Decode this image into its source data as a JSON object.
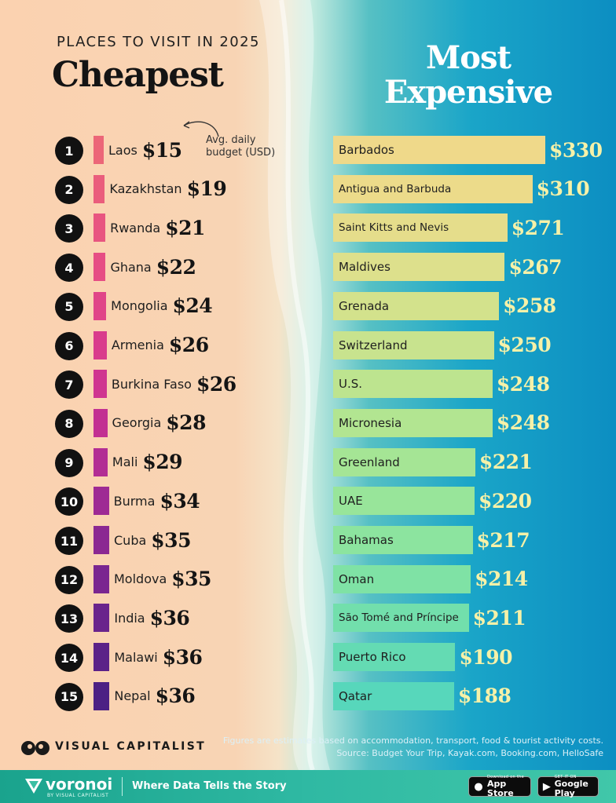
{
  "header": {
    "subtitle": "PLACES TO VISIT IN 2025",
    "cheapest_title": "Cheapest",
    "expensive_title_line1": "Most",
    "expensive_title_line2": "Expensive",
    "note_line1": "Avg. daily",
    "note_line2": "budget (USD)"
  },
  "chart_data": [
    {
      "type": "bar",
      "title": "Cheapest",
      "ylabel": "Avg. daily budget (USD)",
      "categories": [
        "Laos",
        "Kazakhstan",
        "Rwanda",
        "Ghana",
        "Mongolia",
        "Armenia",
        "Burkina Faso",
        "Georgia",
        "Mali",
        "Burma",
        "Cuba",
        "Moldova",
        "India",
        "Malawi",
        "Nepal"
      ],
      "values": [
        15,
        19,
        21,
        22,
        24,
        26,
        26,
        28,
        29,
        34,
        35,
        35,
        36,
        36,
        36
      ],
      "labels": [
        "$15",
        "$19",
        "$21",
        "$22",
        "$24",
        "$26",
        "$26",
        "$28",
        "$29",
        "$34",
        "$35",
        "$35",
        "$36",
        "$36",
        "$36"
      ],
      "ranks": [
        "1",
        "2",
        "3",
        "4",
        "5",
        "6",
        "7",
        "8",
        "9",
        "10",
        "11",
        "12",
        "13",
        "14",
        "15"
      ],
      "colors": [
        "#ec6678",
        "#ea5d7c",
        "#e85580",
        "#e64d84",
        "#e04588",
        "#d93c8c",
        "#cf3590",
        "#c23092",
        "#b22d94",
        "#9e2a94",
        "#8b2892",
        "#7a2690",
        "#6a248c",
        "#5b2288",
        "#4c2084"
      ]
    },
    {
      "type": "bar",
      "title": "Most Expensive",
      "categories": [
        "Barbados",
        "Antigua and Barbuda",
        "Saint Kitts and Nevis",
        "Maldives",
        "Grenada",
        "Switzerland",
        "U.S.",
        "Micronesia",
        "Greenland",
        "UAE",
        "Bahamas",
        "Oman",
        "São Tomé and Príncipe",
        "Puerto Rico",
        "Qatar"
      ],
      "values": [
        330,
        310,
        271,
        267,
        258,
        250,
        248,
        248,
        221,
        220,
        217,
        214,
        211,
        190,
        188
      ],
      "labels": [
        "$330",
        "$310",
        "$271",
        "$267",
        "$258",
        "$250",
        "$248",
        "$248",
        "$221",
        "$220",
        "$217",
        "$214",
        "$211",
        "$190",
        "$188"
      ],
      "colors": [
        "#efd98a",
        "#ecdb8a",
        "#e5dd8b",
        "#dde08c",
        "#d3e28c",
        "#c8e38e",
        "#bde48f",
        "#b2e591",
        "#a5e595",
        "#98e59a",
        "#8ce49f",
        "#7fe2a5",
        "#72dfac",
        "#64dbb3",
        "#57d7bb"
      ]
    }
  ],
  "footer": {
    "brand": "VISUAL CAPITALIST",
    "note_line1": "Figures are estimates based on accommodation, transport, food & tourist activity costs.",
    "note_line2": "Source: Budget Your Trip, Kayak.com, Booking.com, HelloSafe"
  },
  "banner": {
    "name": "voronoi",
    "by": "BY VISUAL CAPITALIST",
    "tagline": "Where Data Tells the Story",
    "appstore_small": "Download on the",
    "appstore_big": "App Store",
    "googleplay_small": "GET IT ON",
    "googleplay_big": "Google Play"
  }
}
